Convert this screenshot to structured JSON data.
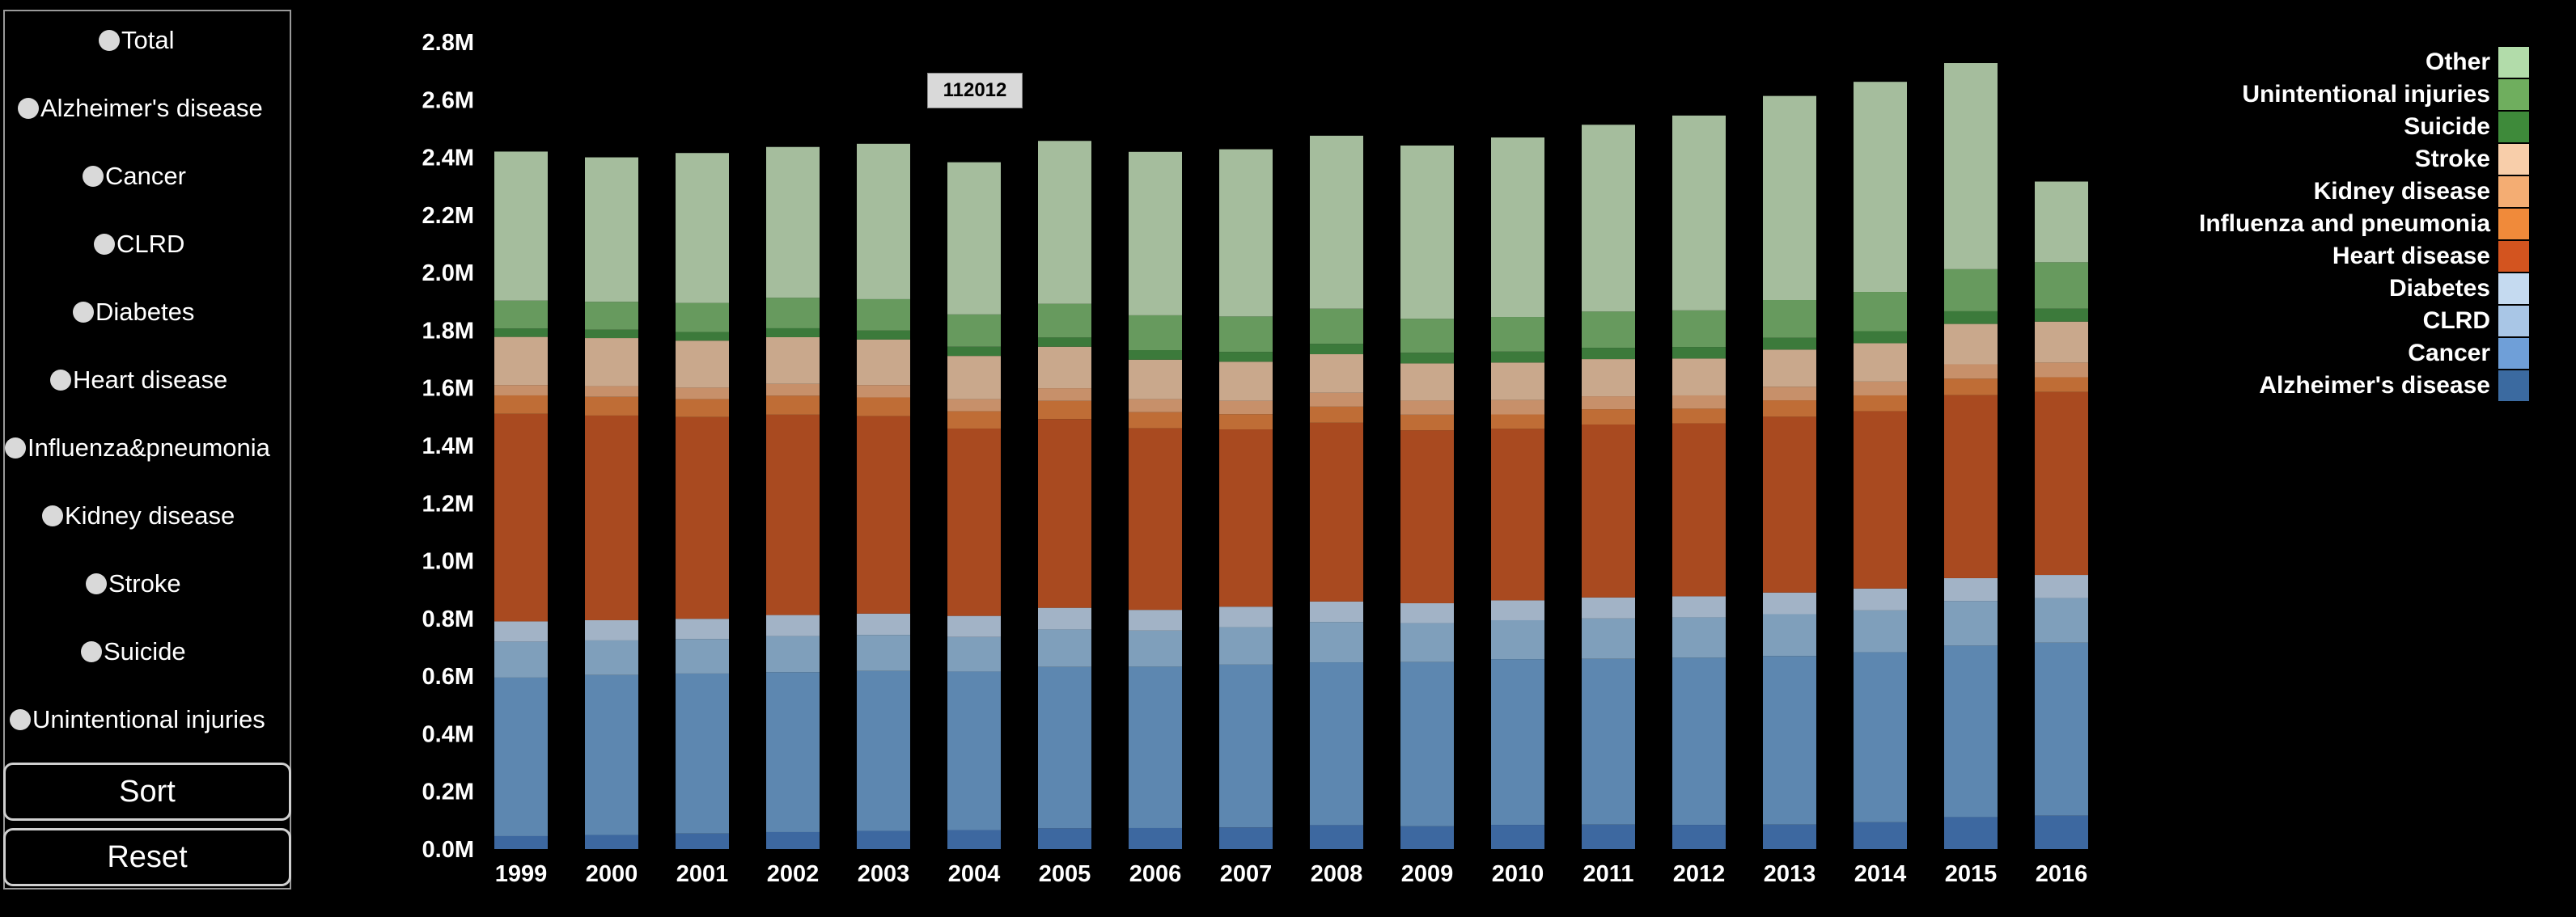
{
  "sidebar": {
    "radios": [
      {
        "label": "Total"
      },
      {
        "label": "Alzheimer's disease"
      },
      {
        "label": "Cancer"
      },
      {
        "label": "CLRD"
      },
      {
        "label": "Diabetes"
      },
      {
        "label": "Heart disease"
      },
      {
        "label": "Influenza&pneumonia"
      },
      {
        "label": "Kidney disease"
      },
      {
        "label": "Stroke"
      },
      {
        "label": "Suicide"
      },
      {
        "label": "Unintentional injuries"
      }
    ],
    "sort_label": "Sort",
    "reset_label": "Reset"
  },
  "tooltip": {
    "value": "112012"
  },
  "chart_data": {
    "type": "bar",
    "stacked": true,
    "categories": [
      "1999",
      "2000",
      "2001",
      "2002",
      "2003",
      "2004",
      "2005",
      "2006",
      "2007",
      "2008",
      "2009",
      "2010",
      "2011",
      "2012",
      "2013",
      "2014",
      "2015",
      "2016"
    ],
    "ylim": [
      0,
      2800000
    ],
    "yticks": [
      {
        "value": 0,
        "label": "0.0M"
      },
      {
        "value": 200000,
        "label": "0.2M"
      },
      {
        "value": 400000,
        "label": "0.4M"
      },
      {
        "value": 600000,
        "label": "0.6M"
      },
      {
        "value": 800000,
        "label": "0.8M"
      },
      {
        "value": 1000000,
        "label": "1.0M"
      },
      {
        "value": 1200000,
        "label": "1.2M"
      },
      {
        "value": 1400000,
        "label": "1.4M"
      },
      {
        "value": 1600000,
        "label": "1.6M"
      },
      {
        "value": 1800000,
        "label": "1.8M"
      },
      {
        "value": 2000000,
        "label": "2.0M"
      },
      {
        "value": 2200000,
        "label": "2.2M"
      },
      {
        "value": 2400000,
        "label": "2.4M"
      },
      {
        "value": 2600000,
        "label": "2.6M"
      },
      {
        "value": 2800000,
        "label": "2.8M"
      }
    ],
    "legend_position": "top-right",
    "series": [
      {
        "name": "Alzheimer's disease",
        "color": "#3b6aa0",
        "bar_color": "#3d68a0",
        "values": [
          45000,
          49000,
          54000,
          59000,
          63000,
          66000,
          72000,
          73000,
          75000,
          83000,
          79000,
          84000,
          85000,
          84000,
          85000,
          93000,
          111000,
          116000
        ]
      },
      {
        "name": "Cancer",
        "color": "#6f9fd8",
        "bar_color": "#5d87b0",
        "values": [
          550000,
          555000,
          555000,
          555000,
          555000,
          550000,
          560000,
          560000,
          565000,
          565000,
          570000,
          575000,
          575000,
          580000,
          585000,
          590000,
          595000,
          600000
        ]
      },
      {
        "name": "CLRD",
        "color": "#a9c6e6",
        "bar_color": "#7f9fbb",
        "values": [
          125000,
          120000,
          120000,
          125000,
          125000,
          120000,
          130000,
          125000,
          130000,
          140000,
          135000,
          135000,
          140000,
          140000,
          145000,
          145000,
          155000,
          155000
        ]
      },
      {
        "name": "Diabetes",
        "color": "#c5daf0",
        "bar_color": "#a2b3c6",
        "values": [
          70000,
          70000,
          70000,
          73000,
          74000,
          73000,
          75000,
          72000,
          71000,
          71000,
          69000,
          69000,
          73000,
          73000,
          75000,
          76000,
          79000,
          80000
        ]
      },
      {
        "name": "Heart disease",
        "color": "#d3541f",
        "bar_color": "#a94a20",
        "values": [
          720000,
          710000,
          700000,
          695000,
          685000,
          650000,
          655000,
          630000,
          615000,
          620000,
          600000,
          595000,
          600000,
          600000,
          610000,
          615000,
          635000,
          635000
        ]
      },
      {
        "name": "Influenza and pneumonia",
        "color": "#f08a3a",
        "bar_color": "#bf6d36",
        "values": [
          64000,
          65000,
          62000,
          66000,
          65000,
          60000,
          63000,
          56000,
          53000,
          56000,
          54000,
          50000,
          53000,
          51000,
          57000,
          55000,
          57000,
          51000
        ]
      },
      {
        "name": "Kidney disease",
        "color": "#f4ad73",
        "bar_color": "#c7906a",
        "values": [
          36000,
          37000,
          40000,
          41000,
          43000,
          42000,
          44000,
          45000,
          46000,
          48000,
          49000,
          50000,
          45000,
          46000,
          47000,
          48000,
          50000,
          51000
        ]
      },
      {
        "name": "Stroke",
        "color": "#f8ceaa",
        "bar_color": "#c9a88c",
        "values": [
          167000,
          167000,
          163000,
          162000,
          158000,
          150000,
          144000,
          137000,
          136000,
          134000,
          129000,
          130000,
          129000,
          128000,
          129000,
          133000,
          140000,
          142000
        ]
      },
      {
        "name": "Suicide",
        "color": "#3e8a3a",
        "bar_color": "#3c7a3b",
        "values": [
          29000,
          29000,
          30000,
          31000,
          31000,
          32000,
          32000,
          33000,
          34000,
          36000,
          37000,
          38000,
          39000,
          40000,
          41000,
          42000,
          44000,
          45000
        ]
      },
      {
        "name": "Unintentional injuries",
        "color": "#6fae5e",
        "bar_color": "#679a5e",
        "values": [
          97000,
          97000,
          101000,
          106000,
          109000,
          112000,
          117000,
          121000,
          123000,
          122000,
          118000,
          120000,
          126000,
          127000,
          131000,
          136000,
          146000,
          161000
        ]
      },
      {
        "name": "Other",
        "color": "#b2dcaa",
        "bar_color": "#a5bd9d",
        "values": [
          517000,
          501000,
          520000,
          523000,
          539000,
          528000,
          565000,
          567000,
          580000,
          600000,
          601000,
          623000,
          648000,
          676000,
          708000,
          729000,
          715000,
          280000
        ]
      }
    ]
  }
}
